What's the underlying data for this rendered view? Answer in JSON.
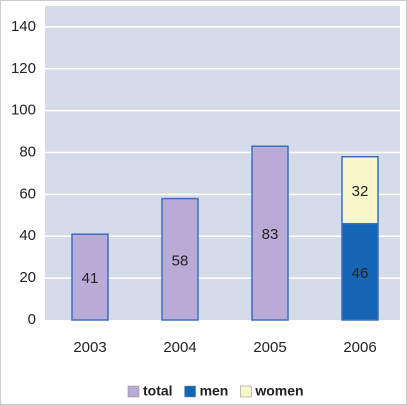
{
  "chart_data": {
    "type": "stacked_bar",
    "categories": [
      "2003",
      "2004",
      "2005",
      "2006"
    ],
    "series": [
      {
        "name": "total",
        "color": "#baaad6",
        "values": [
          41,
          58,
          83,
          null
        ]
      },
      {
        "name": "men",
        "color": "#1565b5",
        "values": [
          null,
          null,
          null,
          46
        ]
      },
      {
        "name": "women",
        "color": "#f8f6cb",
        "values": [
          null,
          null,
          null,
          32
        ]
      }
    ],
    "ylim": [
      0,
      150
    ],
    "yticks": [
      0,
      20,
      40,
      60,
      80,
      100,
      120,
      140
    ],
    "grid": true
  }
}
